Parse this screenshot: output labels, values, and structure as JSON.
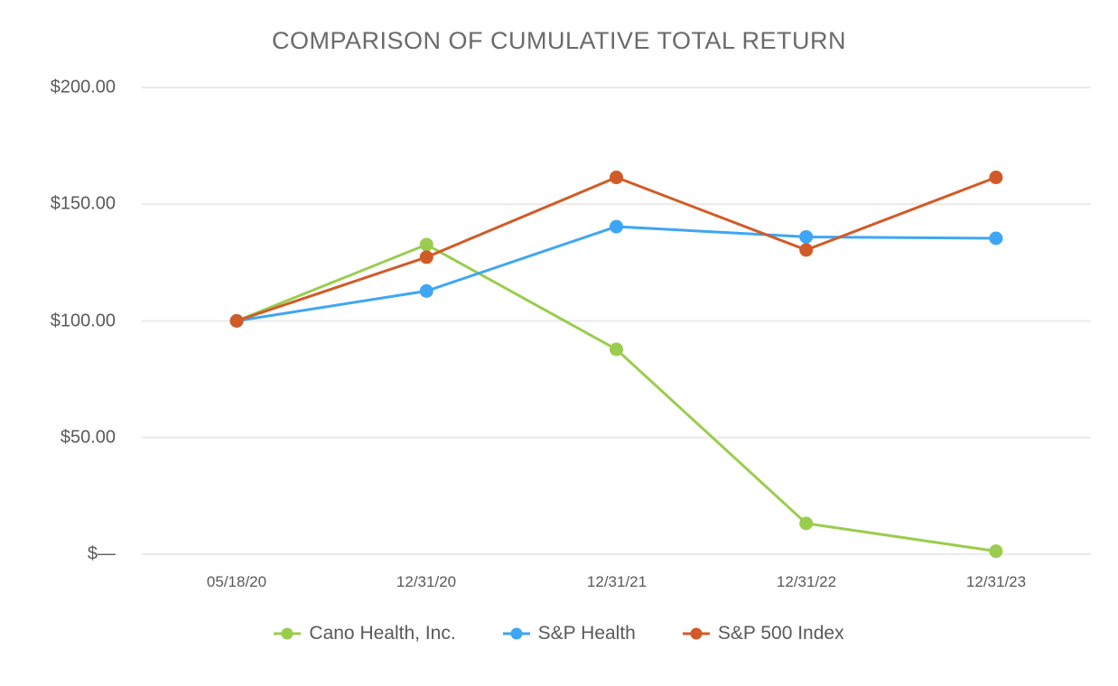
{
  "page": {
    "title": "COMPARISON OF CUMULATIVE TOTAL RETURN"
  },
  "chart_data": {
    "type": "line",
    "title": "COMPARISON OF CUMULATIVE TOTAL RETURN",
    "categories": [
      "05/18/20",
      "12/31/20",
      "12/31/21",
      "12/31/22",
      "12/31/23"
    ],
    "series": [
      {
        "name": "Cano Health, Inc.",
        "color": "#9acd4e",
        "values": [
          100.0,
          132.7,
          87.8,
          13.2,
          1.3
        ]
      },
      {
        "name": "S&P Health",
        "color": "#3ea6f4",
        "values": [
          100.0,
          112.8,
          140.4,
          136.0,
          135.4
        ]
      },
      {
        "name": "S&P 500 Index",
        "color": "#d15b27",
        "values": [
          100.0,
          127.3,
          161.5,
          130.4,
          161.5
        ]
      }
    ],
    "ylim": [
      0,
      200
    ],
    "yticks": [
      0,
      50,
      100,
      150,
      200
    ],
    "ytick_labels": [
      "$—",
      "$50.00",
      "$100.00",
      "$150.00",
      "$200.00"
    ],
    "grid": true,
    "gridline_color": "#eaeaea",
    "legend_position": "bottom",
    "xlabel": "",
    "ylabel": ""
  }
}
